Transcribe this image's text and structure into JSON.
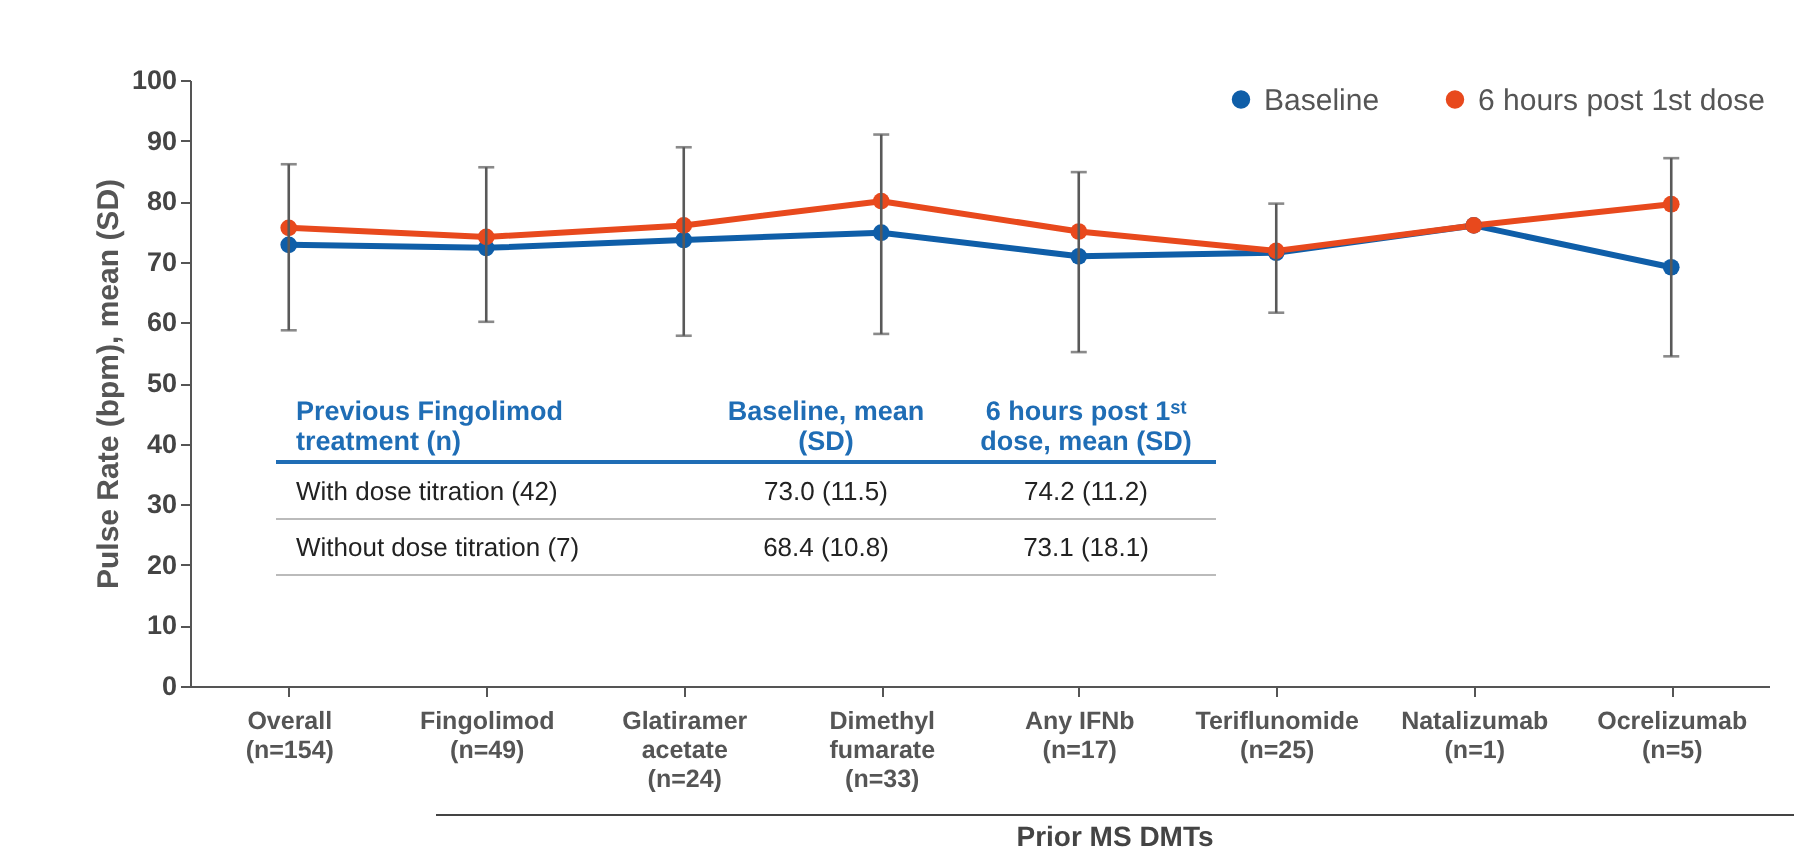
{
  "chart_data": {
    "type": "line",
    "ylabel": "Pulse Rate (bpm), mean (SD)",
    "categories": [
      "Overall\n(n=154)",
      "Fingolimod\n(n=49)",
      "Glatiramer\nacetate\n(n=24)",
      "Dimethyl\nfumarate\n(n=33)",
      "Any IFNb\n(n=17)",
      "Teriflunomide\n(n=25)",
      "Natalizumab\n(n=1)",
      "Ocrelizumab\n(n=5)"
    ],
    "series": [
      {
        "name": "Baseline",
        "color": "#0f5ea8",
        "values": [
          72.8,
          72.3,
          73.6,
          74.8,
          70.9,
          71.5,
          76.0,
          69.1
        ],
        "errors": [
          [
            58.7,
            86.1
          ],
          [
            60.1,
            85.6
          ],
          [
            57.8,
            88.9
          ],
          [
            58.1,
            91.0
          ],
          [
            55.1,
            84.8
          ],
          [
            61.6,
            79.6
          ],
          null,
          [
            54.4,
            87.1
          ]
        ]
      },
      {
        "name": "6 hours post 1st dose",
        "color": "#e8491d",
        "values": [
          75.6,
          74.1,
          76.0,
          80.0,
          75.0,
          71.8,
          76.0,
          79.5
        ]
      }
    ],
    "ylim": [
      0,
      100
    ],
    "yticks": [
      0,
      10,
      20,
      30,
      40,
      50,
      60,
      70,
      80,
      90,
      100
    ],
    "marker": "circle",
    "legend": "top right",
    "annotations": [
      "Previous Fingolimod treatment (n)",
      "Baseline, mean (SD)",
      "6 hours post 1ˢᵗ dose, mean (SD)",
      "With dose titration (42)",
      "73.0 (11.5)",
      "74.2 (11.2)",
      "Without dose titration (7)",
      "68.4 (10.8)",
      "73.1 (18.1)",
      "Prior MS DMTs"
    ]
  }
}
